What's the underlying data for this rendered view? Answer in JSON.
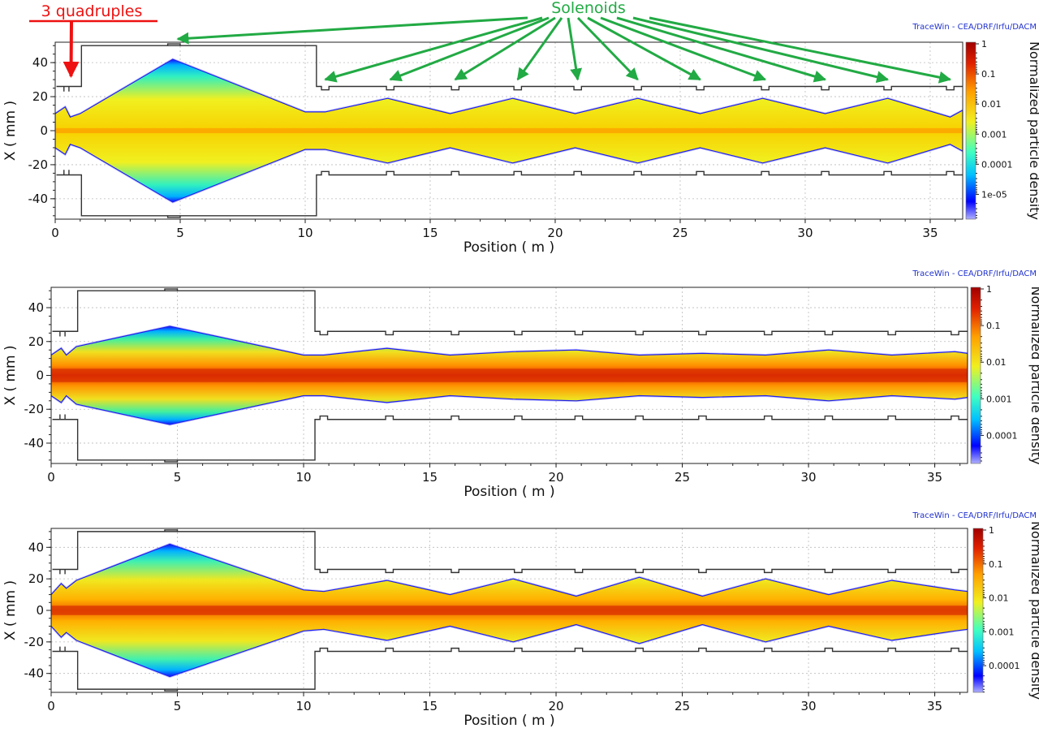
{
  "colors": {
    "red_annotation": "#ee1111",
    "green_annotation": "#22aa44",
    "credit_text": "#2233cc",
    "aperture_line": "#333333",
    "colormap": [
      "#b0b0ff",
      "#0000ff",
      "#00c0ff",
      "#40ffc0",
      "#f0f020",
      "#ffa000",
      "#e02000",
      "#a00000"
    ]
  },
  "annotations": {
    "quadruples": "3 quadruples",
    "solenoids": "Solenoids",
    "solenoid_arrow_targets_m": [
      4.9,
      10.8,
      13.4,
      16.0,
      18.5,
      20.9,
      23.3,
      25.8,
      28.4,
      30.8,
      33.3,
      35.8
    ],
    "quadrupole_arrow_target_m": 0.6
  },
  "chart_data": [
    {
      "type": "heatmap",
      "credit": "TraceWin - CEA/DRF/Irfu/DACM",
      "xlabel": "Position ( m )",
      "ylabel": "X ( mm )",
      "colorbar_label": "Normalized particle density",
      "colorbar_scale": "log",
      "colorbar_ticks": [
        "1",
        "0.1",
        "0.01",
        "0.001",
        "0.0001",
        "1e-05"
      ],
      "xlim": [
        0,
        36.3
      ],
      "ylim": [
        -52,
        52
      ],
      "xticks": [
        0,
        5,
        10,
        15,
        20,
        25,
        30,
        35
      ],
      "yticks": [
        40,
        20,
        0,
        -20,
        -40
      ],
      "grid": true,
      "envelope": {
        "x": [
          0,
          0.4,
          0.6,
          1.0,
          4.7,
          10.0,
          10.8,
          13.3,
          15.8,
          18.3,
          20.8,
          23.3,
          25.8,
          28.3,
          30.8,
          33.3,
          35.8,
          36.3
        ],
        "half_width": [
          10,
          14,
          8,
          10,
          42,
          11,
          11,
          19,
          10,
          19,
          10,
          19,
          10,
          19,
          10,
          19,
          8,
          12
        ]
      },
      "core_half_width": 1.5
    },
    {
      "type": "heatmap",
      "credit": "TraceWin - CEA/DRF/Irfu/DACM",
      "xlabel": "Position ( m )",
      "ylabel": "X ( mm )",
      "colorbar_label": "Normalized particle density",
      "colorbar_scale": "log",
      "colorbar_ticks": [
        "1",
        "0.1",
        "0.01",
        "0.001",
        "0.0001"
      ],
      "xlim": [
        0,
        36.3
      ],
      "ylim": [
        -52,
        52
      ],
      "xticks": [
        0,
        5,
        10,
        15,
        20,
        25,
        30,
        35
      ],
      "yticks": [
        40,
        20,
        0,
        -20,
        -40
      ],
      "grid": true,
      "envelope": {
        "x": [
          0,
          0.4,
          0.6,
          1.0,
          4.7,
          10.0,
          10.8,
          13.3,
          15.8,
          18.3,
          20.8,
          23.3,
          25.8,
          28.3,
          30.8,
          33.3,
          35.8,
          36.3
        ],
        "half_width": [
          12,
          16,
          12,
          17,
          29,
          12,
          12,
          16,
          12,
          14,
          15,
          12,
          13,
          12,
          15,
          12,
          14,
          13
        ]
      },
      "core_half_width": 4
    },
    {
      "type": "heatmap",
      "credit": "TraceWin - CEA/DRF/Irfu/DACM",
      "xlabel": "Position ( m )",
      "ylabel": "X ( mm )",
      "colorbar_label": "Normalized particle density",
      "colorbar_scale": "log",
      "colorbar_ticks": [
        "1",
        "0.1",
        "0.01",
        "0.001",
        "0.0001"
      ],
      "xlim": [
        0,
        36.3
      ],
      "ylim": [
        -52,
        52
      ],
      "xticks": [
        0,
        5,
        10,
        15,
        20,
        25,
        30,
        35
      ],
      "yticks": [
        40,
        20,
        0,
        -20,
        -40
      ],
      "grid": true,
      "envelope": {
        "x": [
          0,
          0.4,
          0.6,
          1.0,
          4.7,
          10.0,
          10.8,
          13.3,
          15.8,
          18.3,
          20.8,
          23.3,
          25.8,
          28.3,
          30.8,
          33.3,
          35.8,
          36.3
        ],
        "half_width": [
          10,
          17,
          14,
          19,
          42,
          13,
          12,
          19,
          10,
          20,
          9,
          21,
          9,
          20,
          10,
          19,
          13,
          12
        ]
      },
      "core_half_width": 3
    }
  ]
}
